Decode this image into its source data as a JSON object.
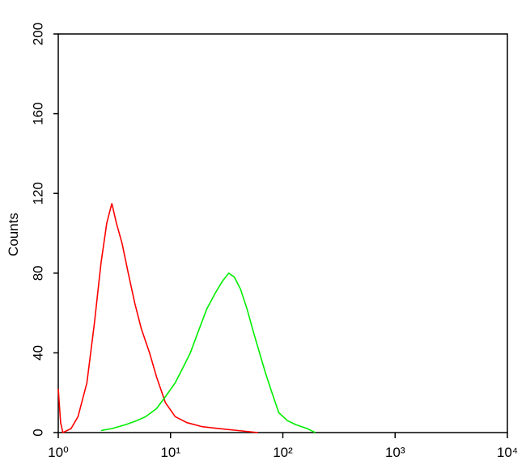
{
  "chart_data": {
    "type": "line",
    "xlabel": null,
    "ylabel": "Counts",
    "xscale": "log",
    "xlim": [
      1,
      10000
    ],
    "xticks": [
      {
        "value": 1,
        "label": "10⁰"
      },
      {
        "value": 10,
        "label": "10¹"
      },
      {
        "value": 100,
        "label": "10²"
      },
      {
        "value": 1000,
        "label": "10³"
      },
      {
        "value": 10000,
        "label": "10⁴"
      }
    ],
    "ylim": [
      0,
      200
    ],
    "yticks": [
      0,
      40,
      80,
      120,
      160,
      200
    ],
    "series": [
      {
        "color": "#ff0000",
        "x": [
          1,
          1.05,
          1.1,
          1.3,
          1.5,
          1.8,
          2.1,
          2.4,
          2.7,
          3.0,
          3.3,
          3.7,
          4.2,
          4.8,
          5.5,
          6.5,
          7.5,
          9,
          11,
          14,
          19,
          27,
          40,
          60
        ],
        "values": [
          22,
          5,
          0,
          2,
          8,
          25,
          55,
          85,
          105,
          115,
          105,
          95,
          80,
          65,
          52,
          40,
          28,
          15,
          8,
          5,
          3,
          2,
          1,
          0
        ]
      },
      {
        "color": "#00ee00",
        "x": [
          2.4,
          3,
          4,
          5,
          6,
          7.5,
          9,
          11,
          13,
          15,
          18,
          21,
          25,
          29,
          33,
          37,
          42,
          48,
          55,
          62,
          70,
          80,
          92,
          110,
          130,
          165,
          195
        ],
        "values": [
          1,
          2,
          4,
          6,
          8,
          12,
          18,
          25,
          33,
          40,
          52,
          62,
          70,
          76,
          80,
          78,
          72,
          62,
          50,
          40,
          30,
          20,
          10,
          6,
          4,
          2,
          0
        ]
      }
    ]
  }
}
